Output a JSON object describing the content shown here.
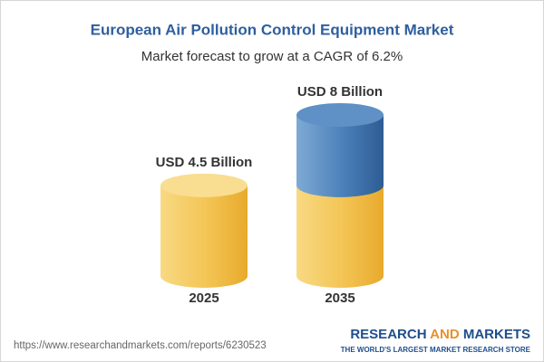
{
  "chart_data": {
    "type": "cylinder",
    "title": "European Air Pollution Control Equipment Market",
    "subtitle": "Market forecast to grow at a CAGR of 6.2%",
    "categories": [
      "2025",
      "2035"
    ],
    "values": [
      4.5,
      8
    ],
    "value_labels": [
      "USD 4.5 Billion",
      "USD 8 Billion"
    ],
    "colors": [
      "#f3c453",
      "#3f74ad"
    ]
  },
  "footer": {
    "url": "https://www.researchandmarkets.com/reports/6230523",
    "brand": [
      "RESEARCH",
      "AND",
      "MARKETS"
    ],
    "tagline": "THE WORLD'S LARGEST MARKET RESEARCH STORE"
  }
}
